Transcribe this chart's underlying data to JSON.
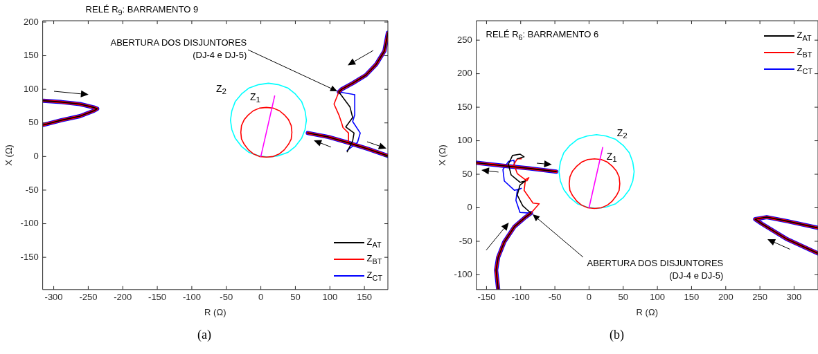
{
  "chart_data": [
    {
      "type": "line",
      "title": "RELÉ R$_{9}$: BARRAMENTO 9",
      "xlabel": "R (Ω)",
      "ylabel": "X (Ω)",
      "xlim": [
        -316,
        184
      ],
      "ylim": [
        -198,
        202
      ],
      "xticks": [
        -300,
        -250,
        -200,
        -150,
        -100,
        -50,
        0,
        50,
        100,
        150
      ],
      "yticks": [
        -150,
        -100,
        -50,
        0,
        50,
        100,
        150,
        200
      ],
      "legend": "bottom right",
      "annotations": [
        "ABERTURA DOS DISJUNTORES\n(DJ-4 e DJ-5)",
        "(a)"
      ],
      "series": [
        {
          "name": "Z$_{2}$",
          "color": "#00ffff",
          "x": [
            66,
            64,
            59,
            50,
            39,
            25,
            11,
            -3,
            -17,
            -28,
            -37,
            -42,
            -44,
            -42,
            -37,
            -28,
            -17,
            -3,
            11,
            25,
            39,
            50,
            59,
            64,
            66,
            64
          ],
          "values": [
            54,
            68,
            82,
            93,
            102,
            107,
            109,
            107,
            102,
            93,
            82,
            68,
            54,
            40,
            27,
            15,
            6,
            1,
            -1,
            1,
            6,
            15,
            27,
            40,
            54,
            68
          ]
        },
        {
          "name": "Z$_{1}$",
          "color": "#ff0000",
          "x": [
            45,
            44,
            40,
            34,
            27,
            18,
            8,
            -2,
            -11,
            -18,
            -24,
            -28,
            -29,
            -28,
            -24,
            -18,
            -11,
            -2,
            8,
            18,
            27,
            34,
            40,
            44,
            45,
            44
          ],
          "values": [
            36,
            46,
            55,
            62,
            68,
            72,
            73,
            72,
            68,
            62,
            55,
            46,
            36,
            26,
            18,
            10,
            4,
            0,
            -1,
            0,
            4,
            10,
            18,
            26,
            36,
            46
          ]
        },
        {
          "color": "#ff00ff",
          "x": [
            0,
            20
          ],
          "values": [
            0,
            90
          ]
        },
        {
          "name": "Z$_{AT}$",
          "color": "#000000",
          "x": [
            -315,
            -289,
            -262,
            -242,
            -237,
            -242,
            -262,
            -289,
            -315,
            null,
            184,
            179,
            167,
            152,
            133,
            117,
            113,
            129,
            133,
            123,
            135,
            133,
            125,
            null,
            68,
            98,
            125,
            156,
            184
          ],
          "values": [
            83,
            81,
            78,
            73,
            71,
            68,
            60,
            54,
            47,
            null,
            184,
            157,
            137,
            121,
            109,
            100,
            96,
            74,
            58,
            44,
            35,
            23,
            7,
            null,
            35,
            29,
            21,
            11,
            1
          ]
        },
        {
          "name": "Z$_{BT}$",
          "color": "#ff0000",
          "x": [
            -315,
            -289,
            -262,
            -242,
            -237,
            -242,
            -262,
            -289,
            -315,
            null,
            184,
            179,
            167,
            152,
            133,
            117,
            113,
            106,
            113,
            117,
            119,
            127,
            127,
            null,
            68,
            98,
            125,
            156,
            184
          ],
          "values": [
            83,
            81,
            78,
            73,
            71,
            68,
            60,
            54,
            47,
            null,
            184,
            157,
            137,
            121,
            109,
            100,
            96,
            78,
            62,
            50,
            43,
            35,
            19,
            null,
            35,
            29,
            21,
            11,
            1
          ]
        },
        {
          "name": "Z$_{CT}$",
          "color": "#0000ff",
          "x": [
            -315,
            -289,
            -262,
            -242,
            -237,
            -242,
            -262,
            -289,
            -315,
            null,
            184,
            179,
            167,
            152,
            133,
            117,
            113,
            136,
            136,
            133,
            144,
            140,
            125,
            null,
            68,
            98,
            125,
            156,
            184
          ],
          "values": [
            83,
            81,
            78,
            73,
            71,
            68,
            60,
            54,
            47,
            null,
            184,
            157,
            137,
            121,
            109,
            100,
            96,
            92,
            62,
            52,
            35,
            21,
            9,
            null,
            35,
            29,
            21,
            11,
            1
          ]
        }
      ]
    },
    {
      "type": "line",
      "title": "RELÉ R$_{6}$: BARRAMENTO 6",
      "xlabel": "R (Ω)",
      "ylabel": "X (Ω)",
      "xlim": [
        -165,
        335
      ],
      "ylim": [
        -122,
        279
      ],
      "xticks": [
        -150,
        -100,
        -50,
        0,
        50,
        100,
        150,
        200,
        250,
        300
      ],
      "yticks": [
        -100,
        -50,
        0,
        50,
        100,
        150,
        200,
        250
      ],
      "legend": "top right",
      "annotations": [
        "ABERTURA DOS DISJUNTORES\n(DJ-4 e DJ-5)",
        "(b)"
      ],
      "series": [
        {
          "name": "Z$_{2}$",
          "color": "#00ffff",
          "x": [
            66,
            64,
            59,
            50,
            39,
            25,
            11,
            -3,
            -17,
            -28,
            -37,
            -42,
            -44,
            -42,
            -37,
            -28,
            -17,
            -3,
            11,
            25,
            39,
            50,
            59,
            64,
            66,
            64
          ],
          "values": [
            54,
            68,
            82,
            93,
            102,
            107,
            109,
            107,
            102,
            93,
            82,
            68,
            54,
            40,
            27,
            15,
            6,
            1,
            -1,
            1,
            6,
            15,
            27,
            40,
            54,
            68
          ]
        },
        {
          "name": "Z$_{1}$",
          "color": "#ff0000",
          "x": [
            45,
            44,
            40,
            34,
            27,
            18,
            8,
            -2,
            -11,
            -18,
            -24,
            -28,
            -29,
            -28,
            -24,
            -18,
            -11,
            -2,
            8,
            18,
            27,
            34,
            40,
            44,
            45,
            44
          ],
          "values": [
            36,
            46,
            55,
            62,
            68,
            72,
            73,
            72,
            68,
            62,
            55,
            46,
            36,
            26,
            18,
            10,
            4,
            0,
            -1,
            0,
            4,
            10,
            18,
            26,
            36,
            46
          ]
        },
        {
          "color": "#ff00ff",
          "x": [
            0,
            20
          ],
          "values": [
            0,
            90
          ]
        },
        {
          "name": "Z$_{AT}$",
          "color": "#000000",
          "x": [
            -133,
            -136,
            -133,
            -124,
            -109,
            -93,
            -85,
            -97,
            -105,
            -101,
            -93,
            -101,
            -114,
            -118,
            -112,
            -101,
            -95,
            -105,
            null,
            -164,
            -128,
            -90,
            -48,
            null,
            335,
            290,
            260,
            243,
            253,
            290,
            335
          ],
          "values": [
            -121,
            -93,
            -74,
            -51,
            -28,
            -14,
            -8,
            3,
            19,
            34,
            40,
            38,
            49,
            65,
            78,
            80,
            76,
            73,
            null,
            67,
            63,
            59,
            54,
            null,
            -30,
            -20,
            -14,
            -17,
            -24,
            -47,
            -68
          ]
        },
        {
          "name": "Z$_{BT}$",
          "color": "#ff0000",
          "x": [
            -133,
            -136,
            -133,
            -124,
            -109,
            -93,
            -85,
            -73,
            -82,
            -95,
            -93,
            -88,
            -91,
            -105,
            -110,
            -105,
            -99,
            null,
            -164,
            -128,
            -90,
            -48,
            null,
            335,
            290,
            260,
            243,
            253,
            290,
            335
          ],
          "values": [
            -121,
            -93,
            -74,
            -51,
            -28,
            -14,
            -8,
            6,
            7,
            26,
            42,
            45,
            40,
            51,
            65,
            73,
            73,
            null,
            67,
            63,
            59,
            54,
            null,
            -30,
            -20,
            -14,
            -17,
            -24,
            -47,
            -68
          ]
        },
        {
          "name": "Z$_{CT}$",
          "color": "#0000ff",
          "x": [
            -133,
            -136,
            -133,
            -124,
            -109,
            -93,
            -85,
            -101,
            -107,
            -105,
            -99,
            -109,
            -124,
            -126,
            -118,
            -110,
            -109,
            null,
            -164,
            -128,
            -90,
            -48,
            null,
            335,
            290,
            260,
            243,
            253,
            290,
            335
          ],
          "values": [
            -121,
            -93,
            -74,
            -51,
            -28,
            -14,
            -8,
            -7,
            11,
            26,
            29,
            26,
            40,
            57,
            69,
            71,
            65,
            null,
            67,
            63,
            59,
            54,
            null,
            -30,
            -20,
            -14,
            -17,
            -24,
            -47,
            -68
          ]
        }
      ]
    }
  ]
}
